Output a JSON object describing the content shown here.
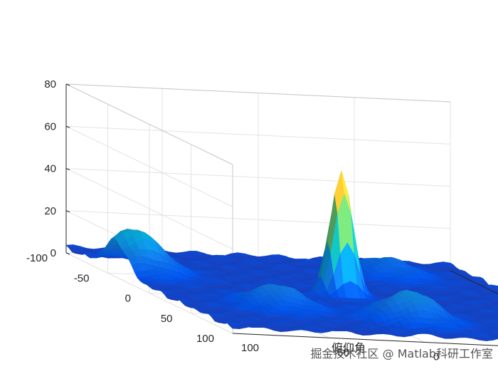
{
  "chart_data": {
    "type": "surface",
    "xlabel": "俯仰角",
    "ylabel": "",
    "zlabel": "",
    "xlim": [
      -100,
      100
    ],
    "ylim": [
      -100,
      100
    ],
    "zlim": [
      0,
      80
    ],
    "x_ticks": [
      "-100",
      "-50",
      "0",
      "50",
      "100"
    ],
    "y_ticks": [
      "-100",
      "-50",
      "0",
      "50",
      "100"
    ],
    "z_ticks": [
      "0",
      "20",
      "40",
      "60",
      "80"
    ],
    "grid": true,
    "colormap": "parula",
    "main_peak": {
      "x": 0,
      "y": 0,
      "z": 60
    },
    "sidelobes": [
      {
        "x": -40,
        "y": 90,
        "z": 20
      },
      {
        "x": 60,
        "y": -10,
        "z": 14
      },
      {
        "x": 40,
        "y": 50,
        "z": 10
      },
      {
        "x": -60,
        "y": -50,
        "z": 8
      }
    ]
  },
  "watermark": "掘金技术社区 @ Matlab科研工作室"
}
